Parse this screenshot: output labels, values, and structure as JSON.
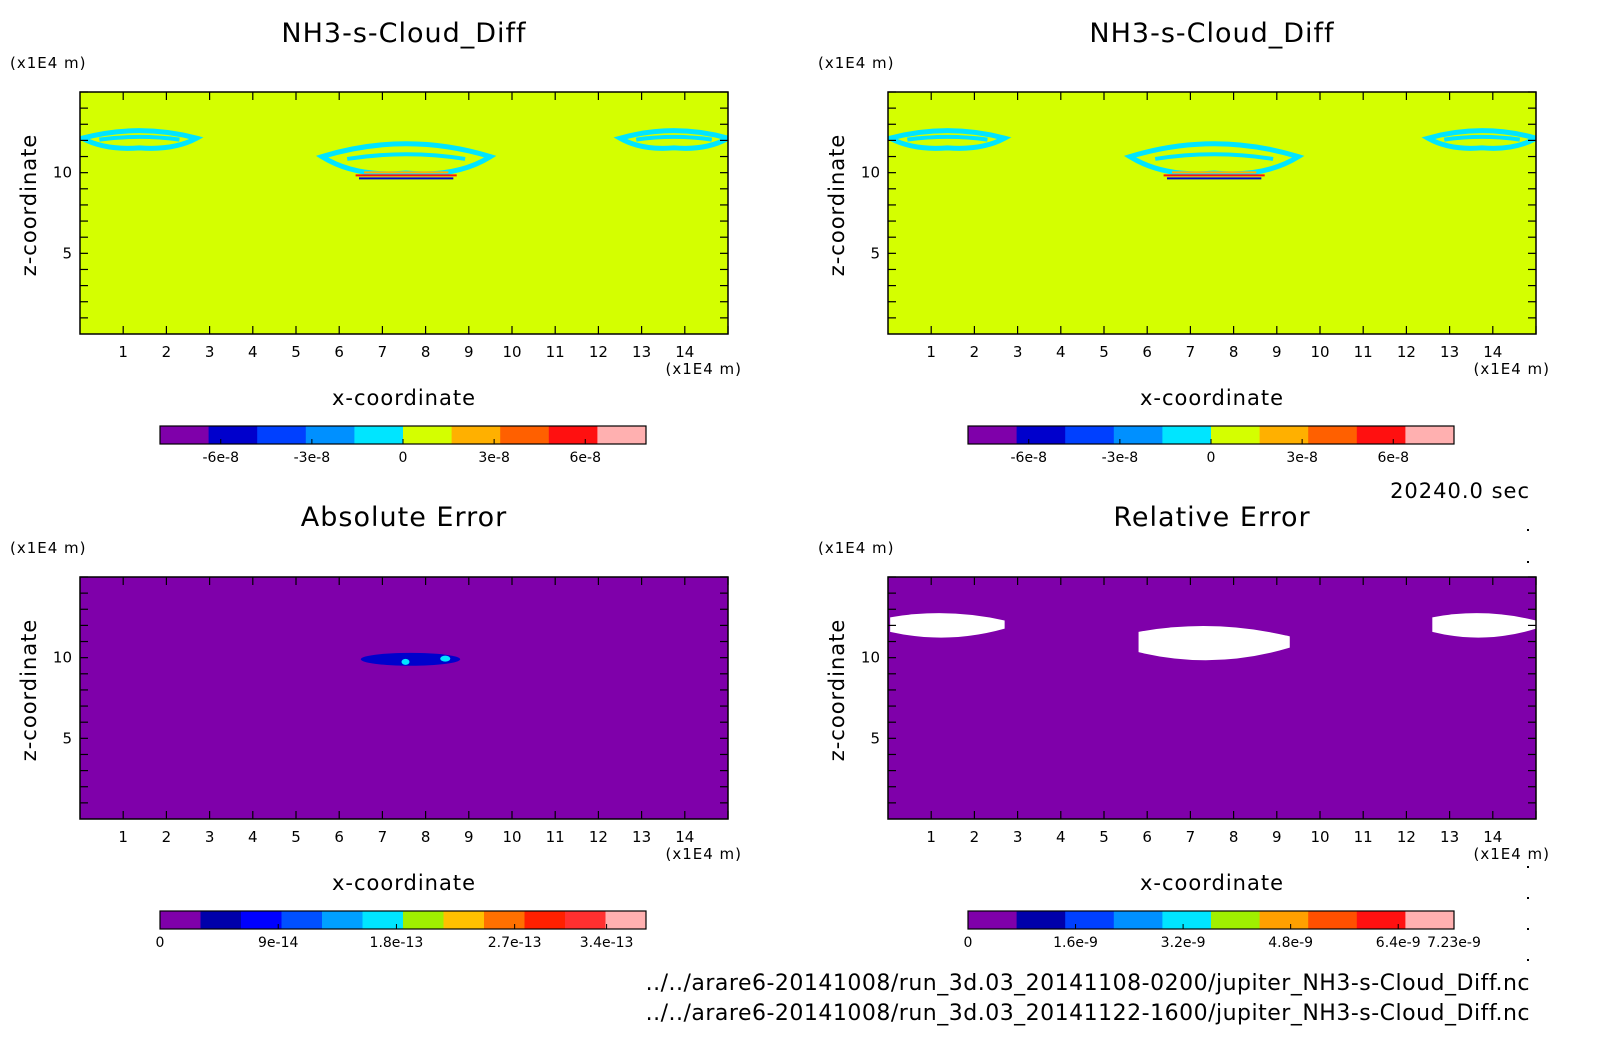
{
  "time_label": "20240.0 sec",
  "files": [
    "../../arare6-20141008/run_3d.03_20141108-0200/jupiter_NH3-s-Cloud_Diff.nc",
    "../../arare6-20141008/run_3d.03_20141122-1600/jupiter_NH3-s-Cloud_Diff.nc"
  ],
  "colors": {
    "yellow_green": "#d4ff00",
    "cyan": "#00e5ff",
    "purple": "#7f00aa",
    "white": "#ffffff"
  },
  "chart_data": [
    {
      "type": "heatmap",
      "title": "NH3-s-Cloud_Diff",
      "xlabel": "x-coordinate",
      "ylabel": "z-coordinate",
      "x_unit": "(x1E4 m)",
      "y_unit": "(x1E4 m)",
      "xlim": [
        0,
        15
      ],
      "ylim": [
        0,
        15
      ],
      "xticks": [
        "1",
        "2",
        "3",
        "4",
        "5",
        "6",
        "7",
        "8",
        "9",
        "10",
        "11",
        "12",
        "13",
        "14"
      ],
      "yticks": [
        "5",
        "10"
      ],
      "background_color": "#d4ff00",
      "colorbar": {
        "range": [
          -8e-08,
          8e-08
        ],
        "colors": [
          "#7f00aa",
          "#0000cc",
          "#0040ff",
          "#0090ff",
          "#00e5ff",
          "#d4ff00",
          "#ffb000",
          "#ff6000",
          "#ff1010",
          "#ffb0b0"
        ],
        "tick_values": [
          -6e-08,
          -3e-08,
          0,
          3e-08,
          6e-08
        ],
        "tick_labels": [
          "-6e-8",
          "-3e-8",
          "0",
          "3e-8",
          "6e-8"
        ]
      },
      "features": [
        {
          "shape": "cloud",
          "x_range": [
            0.05,
            2.7
          ],
          "z_range": [
            11.2,
            12.9
          ],
          "color": "#00e5ff"
        },
        {
          "shape": "cloud",
          "x_range": [
            5.6,
            9.5
          ],
          "z_range": [
            9.4,
            12.3
          ],
          "color": "#00e5ff"
        },
        {
          "shape": "cloud",
          "x_range": [
            12.5,
            15
          ],
          "z_range": [
            11.2,
            12.9
          ],
          "color": "#00e5ff"
        }
      ]
    },
    {
      "type": "heatmap",
      "title": "NH3-s-Cloud_Diff",
      "xlabel": "x-coordinate",
      "ylabel": "z-coordinate",
      "x_unit": "(x1E4 m)",
      "y_unit": "(x1E4 m)",
      "xlim": [
        0,
        15
      ],
      "ylim": [
        0,
        15
      ],
      "xticks": [
        "1",
        "2",
        "3",
        "4",
        "5",
        "6",
        "7",
        "8",
        "9",
        "10",
        "11",
        "12",
        "13",
        "14"
      ],
      "yticks": [
        "5",
        "10"
      ],
      "background_color": "#d4ff00",
      "colorbar": {
        "range": [
          -8e-08,
          8e-08
        ],
        "colors": [
          "#7f00aa",
          "#0000cc",
          "#0040ff",
          "#0090ff",
          "#00e5ff",
          "#d4ff00",
          "#ffb000",
          "#ff6000",
          "#ff1010",
          "#ffb0b0"
        ],
        "tick_values": [
          -6e-08,
          -3e-08,
          0,
          3e-08,
          6e-08
        ],
        "tick_labels": [
          "-6e-8",
          "-3e-8",
          "0",
          "3e-8",
          "6e-8"
        ]
      },
      "features": [
        {
          "shape": "cloud",
          "x_range": [
            0.05,
            2.7
          ],
          "z_range": [
            11.2,
            12.9
          ],
          "color": "#00e5ff"
        },
        {
          "shape": "cloud",
          "x_range": [
            5.6,
            9.5
          ],
          "z_range": [
            9.4,
            12.3
          ],
          "color": "#00e5ff"
        },
        {
          "shape": "cloud",
          "x_range": [
            12.5,
            15
          ],
          "z_range": [
            11.2,
            12.9
          ],
          "color": "#00e5ff"
        }
      ]
    },
    {
      "type": "heatmap",
      "title": "Absolute Error",
      "xlabel": "x-coordinate",
      "ylabel": "z-coordinate",
      "x_unit": "(x1E4 m)",
      "y_unit": "(x1E4 m)",
      "xlim": [
        0,
        15
      ],
      "ylim": [
        0,
        15
      ],
      "xticks": [
        "1",
        "2",
        "3",
        "4",
        "5",
        "6",
        "7",
        "8",
        "9",
        "10",
        "11",
        "12",
        "13",
        "14"
      ],
      "yticks": [
        "5",
        "10"
      ],
      "background_color": "#7f00aa",
      "colorbar": {
        "range": [
          0,
          3.7e-13
        ],
        "colors": [
          "#7f00aa",
          "#0000aa",
          "#0000ff",
          "#0050ff",
          "#00a0ff",
          "#00e5ff",
          "#a0f000",
          "#ffc000",
          "#ff7000",
          "#ff2000",
          "#ff3030",
          "#ffb0b0"
        ],
        "tick_values": [
          0,
          9e-14,
          1.8e-13,
          2.7e-13,
          3.4e-13
        ],
        "tick_labels": [
          "0",
          "9e-14",
          "1.8e-13",
          "2.7e-13",
          "3.4e-13"
        ]
      },
      "features": [
        {
          "shape": "streak",
          "x_range": [
            6.5,
            8.8
          ],
          "z_range": [
            9.5,
            10.3
          ],
          "color": "#0000cc"
        }
      ]
    },
    {
      "type": "heatmap",
      "title": "Relative Error",
      "xlabel": "x-coordinate",
      "ylabel": "z-coordinate",
      "x_unit": "(x1E4 m)",
      "y_unit": "(x1E4 m)",
      "xlim": [
        0,
        15
      ],
      "ylim": [
        0,
        15
      ],
      "xticks": [
        "1",
        "2",
        "3",
        "4",
        "5",
        "6",
        "7",
        "8",
        "9",
        "10",
        "11",
        "12",
        "13",
        "14"
      ],
      "yticks": [
        "5",
        "10"
      ],
      "background_color": "#7f00aa",
      "colorbar": {
        "range": [
          0,
          7.23e-09
        ],
        "colors": [
          "#7f00aa",
          "#0000aa",
          "#0040ff",
          "#0090ff",
          "#00e5ff",
          "#a0f000",
          "#ffa000",
          "#ff5000",
          "#ff1010",
          "#ffb0b0"
        ],
        "tick_values": [
          0,
          1.6e-09,
          3.2e-09,
          4.8e-09,
          6.4e-09,
          7.23e-09
        ],
        "tick_labels": [
          "0",
          "1.6e-9",
          "3.2e-9",
          "4.8e-9",
          "6.4e-9",
          "7.23e-9"
        ]
      },
      "features": [
        {
          "shape": "blob",
          "x_range": [
            0.05,
            2.7
          ],
          "z_range": [
            11.0,
            13.0
          ],
          "color": "#ffffff"
        },
        {
          "shape": "blob",
          "x_range": [
            5.8,
            9.3
          ],
          "z_range": [
            9.5,
            12.3
          ],
          "color": "#ffffff"
        },
        {
          "shape": "blob",
          "x_range": [
            12.6,
            15
          ],
          "z_range": [
            11.0,
            13.0
          ],
          "color": "#ffffff"
        }
      ]
    }
  ]
}
